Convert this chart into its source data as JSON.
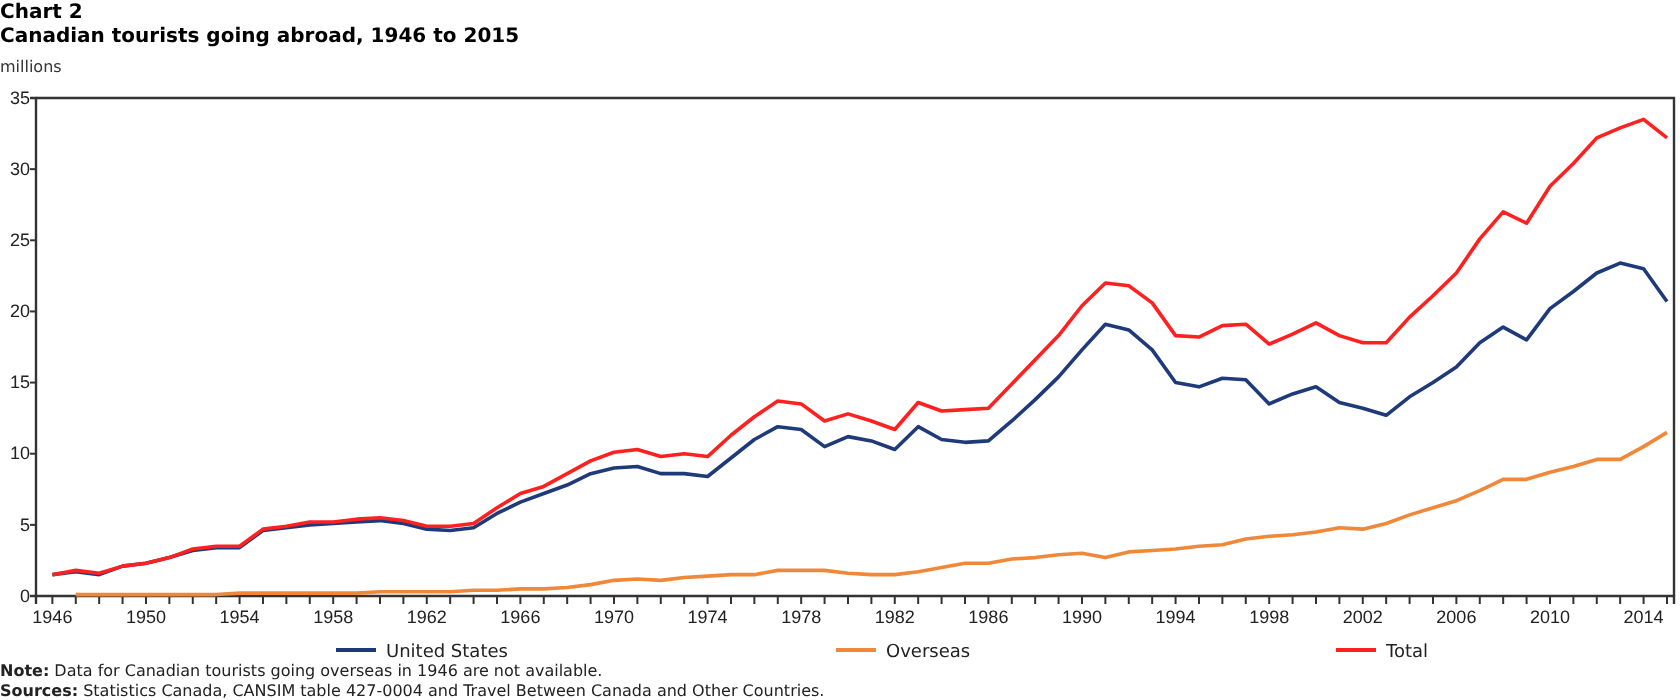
{
  "chart_data": {
    "type": "line",
    "title": "Chart 2",
    "subtitle": "Canadian tourists going abroad, 1946 to 2015",
    "ylabel": "millions",
    "x": [
      1946,
      1947,
      1948,
      1949,
      1950,
      1951,
      1952,
      1953,
      1954,
      1955,
      1956,
      1957,
      1958,
      1959,
      1960,
      1961,
      1962,
      1963,
      1964,
      1965,
      1966,
      1967,
      1968,
      1969,
      1970,
      1971,
      1972,
      1973,
      1974,
      1975,
      1976,
      1977,
      1978,
      1979,
      1980,
      1981,
      1982,
      1983,
      1984,
      1985,
      1986,
      1987,
      1988,
      1989,
      1990,
      1991,
      1992,
      1993,
      1994,
      1995,
      1996,
      1997,
      1998,
      1999,
      2000,
      2001,
      2002,
      2003,
      2004,
      2005,
      2006,
      2007,
      2008,
      2009,
      2010,
      2011,
      2012,
      2013,
      2014,
      2015
    ],
    "series": [
      {
        "name": "United States",
        "color": "#1f3a7a",
        "values": [
          1.5,
          1.7,
          1.5,
          2.1,
          2.3,
          2.7,
          3.2,
          3.4,
          3.4,
          4.6,
          4.8,
          5.0,
          5.1,
          5.2,
          5.3,
          5.1,
          4.7,
          4.6,
          4.8,
          5.8,
          6.6,
          7.2,
          7.8,
          8.6,
          9.0,
          9.1,
          8.6,
          8.6,
          8.4,
          9.7,
          11.0,
          11.9,
          11.7,
          10.5,
          11.2,
          10.9,
          10.3,
          11.9,
          11.0,
          10.8,
          10.9,
          12.3,
          13.8,
          15.4,
          17.3,
          19.1,
          18.7,
          17.3,
          15.0,
          14.7,
          15.3,
          15.2,
          13.5,
          14.2,
          14.7,
          13.6,
          13.2,
          12.7,
          14.0,
          15.0,
          16.1,
          17.8,
          18.9,
          18.0,
          20.2,
          21.4,
          22.7,
          23.4,
          23.0,
          20.7
        ]
      },
      {
        "name": "Overseas",
        "color": "#f0883a",
        "values": [
          null,
          0.1,
          0.1,
          0.1,
          0.1,
          0.1,
          0.1,
          0.1,
          0.2,
          0.2,
          0.2,
          0.2,
          0.2,
          0.2,
          0.3,
          0.3,
          0.3,
          0.3,
          0.4,
          0.4,
          0.5,
          0.5,
          0.6,
          0.8,
          1.1,
          1.2,
          1.1,
          1.3,
          1.4,
          1.5,
          1.5,
          1.8,
          1.8,
          1.8,
          1.6,
          1.5,
          1.5,
          1.7,
          2.0,
          2.3,
          2.3,
          2.6,
          2.7,
          2.9,
          3.0,
          2.7,
          3.1,
          3.2,
          3.3,
          3.5,
          3.6,
          4.0,
          4.2,
          4.3,
          4.5,
          4.8,
          4.7,
          5.1,
          5.7,
          6.2,
          6.7,
          7.4,
          8.2,
          8.2,
          8.7,
          9.1,
          9.6,
          9.6,
          10.5,
          11.5
        ]
      },
      {
        "name": "Total",
        "color": "#ff2020",
        "values": [
          1.5,
          1.8,
          1.6,
          2.1,
          2.3,
          2.7,
          3.3,
          3.5,
          3.5,
          4.7,
          4.9,
          5.2,
          5.2,
          5.4,
          5.5,
          5.3,
          4.9,
          4.9,
          5.1,
          6.2,
          7.2,
          7.7,
          8.6,
          9.5,
          10.1,
          10.3,
          9.8,
          10.0,
          9.8,
          11.3,
          12.6,
          13.7,
          13.5,
          12.3,
          12.8,
          12.3,
          11.7,
          13.6,
          13.0,
          13.1,
          13.2,
          14.9,
          16.6,
          18.3,
          20.4,
          22.0,
          21.8,
          20.6,
          18.3,
          18.2,
          19.0,
          19.1,
          17.7,
          18.4,
          19.2,
          18.3,
          17.8,
          17.8,
          19.6,
          21.1,
          22.7,
          25.1,
          27.0,
          26.2,
          28.8,
          30.4,
          32.2,
          32.9,
          33.5,
          32.2
        ]
      }
    ],
    "xlim": [
      1945.3,
      2015.3
    ],
    "xticks": [
      1946,
      {
        "value": 1947,
        "label": null
      },
      {
        "value": 1948,
        "label": null
      },
      {
        "value": 1949,
        "label": null
      },
      1950,
      {
        "value": 1951,
        "label": null
      },
      {
        "value": 1952,
        "label": null
      },
      {
        "value": 1953,
        "label": null
      },
      1954,
      {
        "value": 1955,
        "label": null
      },
      {
        "value": 1956,
        "label": null
      },
      {
        "value": 1957,
        "label": null
      },
      1958,
      {
        "value": 1959,
        "label": null
      },
      {
        "value": 1960,
        "label": null
      },
      {
        "value": 1961,
        "label": null
      },
      1962,
      {
        "value": 1963,
        "label": null
      },
      {
        "value": 1964,
        "label": null
      },
      {
        "value": 1965,
        "label": null
      },
      1966,
      {
        "value": 1967,
        "label": null
      },
      {
        "value": 1968,
        "label": null
      },
      {
        "value": 1969,
        "label": null
      },
      1970,
      {
        "value": 1971,
        "label": null
      },
      {
        "value": 1972,
        "label": null
      },
      {
        "value": 1973,
        "label": null
      },
      1974,
      {
        "value": 1975,
        "label": null
      },
      {
        "value": 1976,
        "label": null
      },
      {
        "value": 1977,
        "label": null
      },
      1978,
      {
        "value": 1979,
        "label": null
      },
      {
        "value": 1980,
        "label": null
      },
      {
        "value": 1981,
        "label": null
      },
      1982,
      {
        "value": 1983,
        "label": null
      },
      {
        "value": 1984,
        "label": null
      },
      {
        "value": 1985,
        "label": null
      },
      1986,
      {
        "value": 1987,
        "label": null
      },
      {
        "value": 1988,
        "label": null
      },
      {
        "value": 1989,
        "label": null
      },
      1990,
      {
        "value": 1991,
        "label": null
      },
      {
        "value": 1992,
        "label": null
      },
      {
        "value": 1993,
        "label": null
      },
      1994,
      {
        "value": 1995,
        "label": null
      },
      {
        "value": 1996,
        "label": null
      },
      {
        "value": 1997,
        "label": null
      },
      1998,
      {
        "value": 1999,
        "label": null
      },
      {
        "value": 2000,
        "label": null
      },
      {
        "value": 2001,
        "label": null
      },
      2002,
      {
        "value": 2003,
        "label": null
      },
      {
        "value": 2004,
        "label": null
      },
      {
        "value": 2005,
        "label": null
      },
      2006,
      {
        "value": 2007,
        "label": null
      },
      {
        "value": 2008,
        "label": null
      },
      {
        "value": 2009,
        "label": null
      },
      2010,
      {
        "value": 2011,
        "label": null
      },
      {
        "value": 2012,
        "label": null
      },
      {
        "value": 2013,
        "label": null
      },
      2014,
      {
        "value": 2015,
        "label": null
      }
    ],
    "ylim": [
      0,
      35
    ],
    "yticks": [
      0,
      5,
      10,
      15,
      20,
      25,
      30,
      35
    ],
    "grid": false,
    "legend": "bottom",
    "marker": "none",
    "line_style": "solid",
    "annotations": [
      "Note: Data for Canadian tourists going overseas in 1946 are not available.",
      "Sources: Statistics Canada, CANSIM table 427-0004 and Travel Between Canada and Other Countries."
    ]
  }
}
